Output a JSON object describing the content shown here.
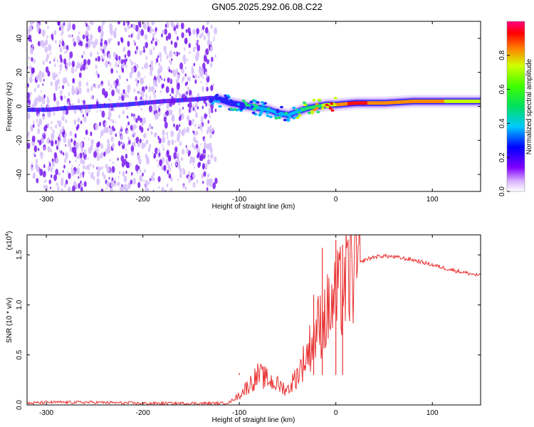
{
  "title": "GN05.2025.292.06.08.C22",
  "colors": {
    "spec_purple": "#7a1cf0",
    "spec_light": "#d8c2fb",
    "snr_line": "#e83232",
    "axis": "#000000"
  },
  "chart_data": [
    {
      "type": "heatmap",
      "title": "GN05.2025.292.06.08.C22",
      "xlabel": "Height of straight line (km)",
      "ylabel": "Frequency (Hz)",
      "xlim": [
        -320,
        150
      ],
      "ylim": [
        -50,
        50
      ],
      "xticks": [
        -300,
        -200,
        -100,
        0,
        100
      ],
      "xtick_labels": [
        "-300",
        "-200",
        "-100",
        "0",
        "100"
      ],
      "yticks": [
        -40,
        -20,
        0,
        20,
        40
      ],
      "ytick_labels": [
        "-40",
        "-20",
        "0",
        "20",
        "40"
      ],
      "colorbar": {
        "label": "Normalized spectral amplitude",
        "range": [
          0,
          1
        ],
        "ticks": [
          0.0,
          0.2,
          0.4,
          0.6,
          0.8
        ],
        "tick_labels": [
          "0.0",
          "0.2",
          "0.4",
          "0.6",
          "0.8"
        ]
      },
      "noise_region_x": [
        -320,
        -124
      ],
      "ridge": {
        "x": [
          -320,
          -300,
          -280,
          -250,
          -220,
          -200,
          -180,
          -150,
          -130,
          -120,
          -110,
          -100,
          -90,
          -80,
          -70,
          -60,
          -50,
          -40,
          -30,
          -20,
          -10,
          0,
          20,
          50,
          80,
          100,
          130,
          150
        ],
        "freq": [
          -2,
          -2,
          -1,
          0,
          1,
          2,
          3,
          4,
          5,
          4,
          2,
          1,
          0,
          -1,
          -2,
          -4,
          -5,
          -3,
          -1,
          0,
          1,
          1,
          2,
          2,
          3,
          3,
          3,
          3
        ],
        "amplitude": [
          0.3,
          0.3,
          0.3,
          0.3,
          0.3,
          0.3,
          0.3,
          0.35,
          0.4,
          0.4,
          0.45,
          0.45,
          0.5,
          0.5,
          0.5,
          0.55,
          0.55,
          0.6,
          0.65,
          0.7,
          0.8,
          0.9,
          1.0,
          0.9,
          0.95,
          0.9,
          0.85,
          0.8
        ]
      }
    },
    {
      "type": "line",
      "xlabel": "Height of straight line (km)",
      "ylabel": "SNR (10 * v/v)",
      "y_scale_label": "(x10",
      "y_scale_exp": "4",
      "xlim": [
        -320,
        150
      ],
      "ylim": [
        0,
        1.7
      ],
      "xticks": [
        -300,
        -200,
        -100,
        0,
        100
      ],
      "xtick_labels": [
        "-300",
        "-200",
        "-100",
        "0",
        "100"
      ],
      "yticks": [
        0.0,
        0.5,
        1.0,
        1.5
      ],
      "ytick_labels": [
        "0.0",
        "0.5",
        "1.0",
        "1.5"
      ],
      "series": [
        {
          "name": "SNR",
          "x": [
            -320,
            -300,
            -250,
            -200,
            -150,
            -120,
            -110,
            -100,
            -90,
            -80,
            -70,
            -60,
            -50,
            -40,
            -30,
            -20,
            -10,
            0,
            10,
            20,
            30,
            40,
            50,
            60,
            80,
            100,
            120,
            150
          ],
          "values": [
            0.01,
            0.02,
            0.02,
            0.01,
            0.01,
            0.01,
            0.02,
            0.1,
            0.2,
            0.3,
            0.25,
            0.2,
            0.15,
            0.3,
            0.5,
            0.75,
            0.9,
            1.05,
            1.2,
            1.38,
            1.45,
            1.48,
            1.49,
            1.48,
            1.45,
            1.4,
            1.35,
            1.29
          ]
        }
      ],
      "spikes": [
        {
          "x": -14,
          "y": 1.57
        },
        {
          "x": 0,
          "y": 1.65
        },
        {
          "x": 7,
          "y": 1.6
        },
        {
          "x": -23,
          "y": 1.1
        },
        {
          "x": -100,
          "y": 0.32
        }
      ]
    }
  ]
}
